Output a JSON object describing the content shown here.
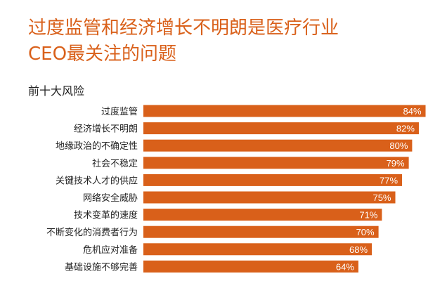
{
  "title_line1": "过度监管和经济增长不明朗是医疗行业",
  "title_line2": "CEO最关注的问题",
  "subtitle": "前十大风险",
  "colors": {
    "bar": "#d9601a",
    "title": "#d9601a",
    "value_text": "#ffffff"
  },
  "chart_data": {
    "type": "bar",
    "orientation": "horizontal",
    "title": "过度监管和经济增长不明朗是医疗行业CEO最关注的问题",
    "subtitle": "前十大风险",
    "categories": [
      "过度监管",
      "经济增长不明朗",
      "地缘政治的不确定性",
      "社会不稳定",
      "关键技术人才的供应",
      "网络安全威胁",
      "技术变革的速度",
      "不断变化的消费者行为",
      "危机应对准备",
      "基础设施不够完善"
    ],
    "values": [
      84,
      82,
      80,
      79,
      77,
      75,
      71,
      70,
      68,
      64
    ],
    "value_labels": [
      "84%",
      "82%",
      "80%",
      "79%",
      "77%",
      "75%",
      "71%",
      "70%",
      "68%",
      "64%"
    ],
    "unit": "%",
    "grid": false
  }
}
